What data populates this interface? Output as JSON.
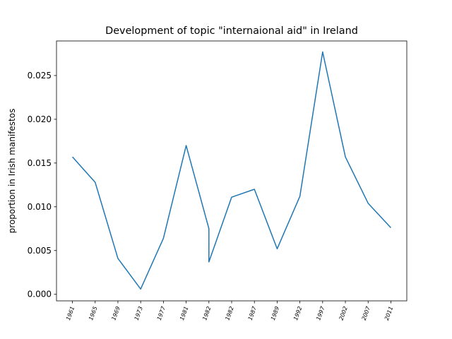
{
  "chart_data": {
    "type": "line",
    "title": "Development of topic \"internaional aid\" in Ireland",
    "ylabel": "proportion in Irish manifestos",
    "x": [
      0,
      1,
      2,
      3,
      4,
      5,
      6,
      6,
      7,
      8,
      9,
      10,
      11,
      12,
      13,
      14
    ],
    "series": [
      {
        "name": "internaional aid",
        "color": "#1f77b4",
        "values": [
          0.0157,
          0.0128,
          0.0041,
          0.0006,
          0.0064,
          0.017,
          0.0075,
          0.0037,
          0.0111,
          0.012,
          0.0052,
          0.0112,
          0.0277,
          0.0157,
          0.0104,
          0.0076
        ]
      }
    ],
    "xlim": [
      -0.7,
      14.7
    ],
    "xticks": [
      {
        "value": 0,
        "label": "1961"
      },
      {
        "value": 1,
        "label": "1965"
      },
      {
        "value": 2,
        "label": "1969"
      },
      {
        "value": 3,
        "label": "1973"
      },
      {
        "value": 4,
        "label": "1977"
      },
      {
        "value": 5,
        "label": "1981"
      },
      {
        "value": 6,
        "label": "1982"
      },
      {
        "value": 7,
        "label": "1982"
      },
      {
        "value": 8,
        "label": "1987"
      },
      {
        "value": 9,
        "label": "1989"
      },
      {
        "value": 10,
        "label": "1992"
      },
      {
        "value": 11,
        "label": "1997"
      },
      {
        "value": 12,
        "label": "2002"
      },
      {
        "value": 13,
        "label": "2007"
      },
      {
        "value": 14,
        "label": "2011"
      }
    ],
    "ylim": [
      -0.00075,
      0.02895
    ],
    "yticks": [
      {
        "value": 0,
        "label": "0.000"
      },
      {
        "value": 0.005,
        "label": "0.005"
      },
      {
        "value": 0.01,
        "label": "0.010"
      },
      {
        "value": 0.015,
        "label": "0.015"
      },
      {
        "value": 0.02,
        "label": "0.020"
      },
      {
        "value": 0.025,
        "label": "0.025"
      }
    ],
    "grid": false
  }
}
